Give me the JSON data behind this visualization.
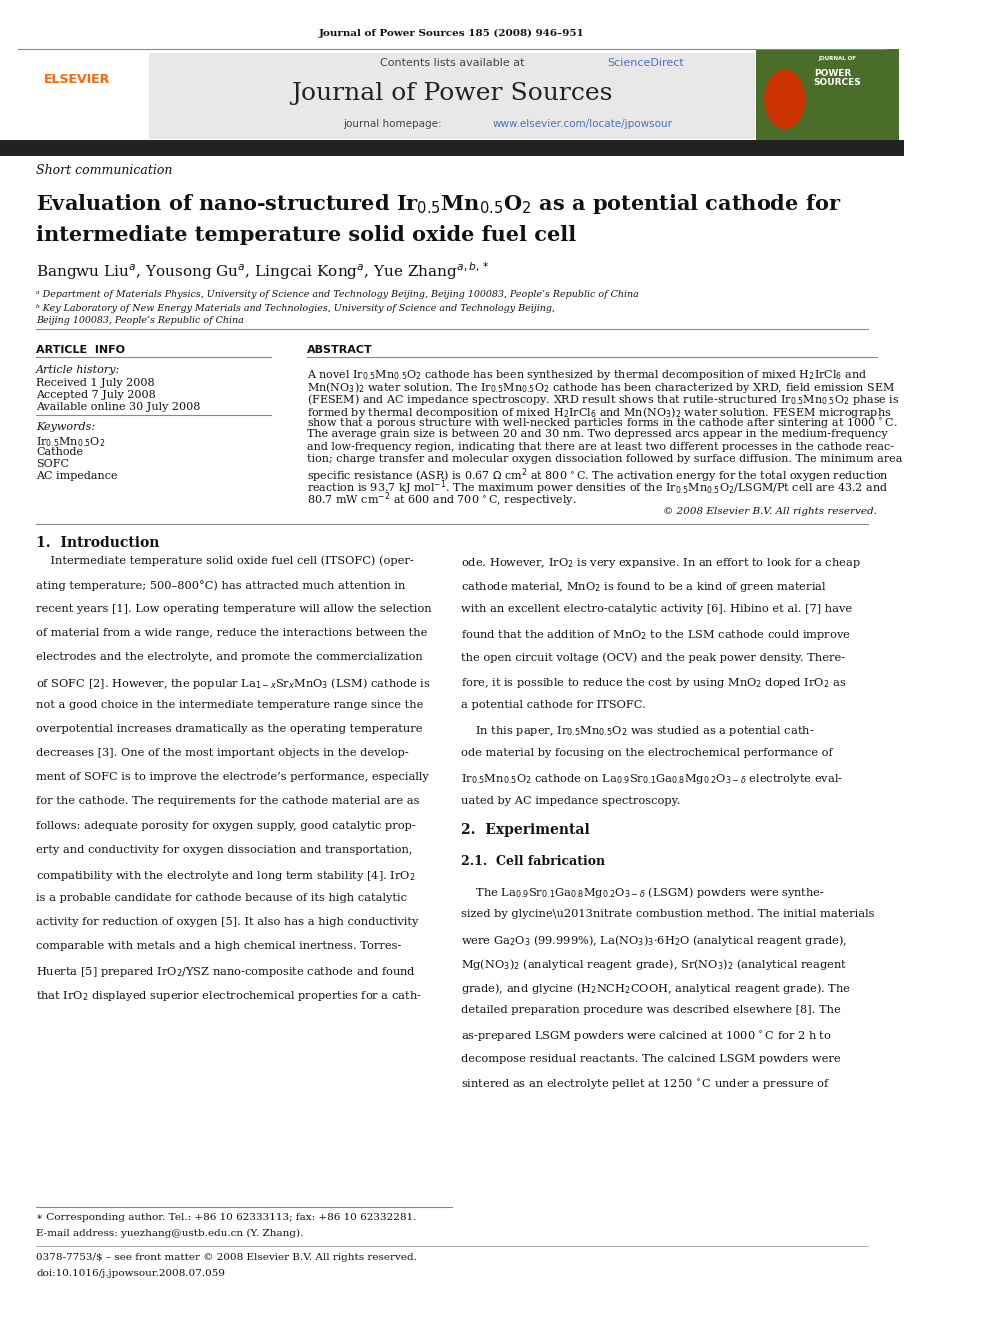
{
  "page_width": 9.92,
  "page_height": 13.23,
  "bg_color": "#ffffff",
  "top_journal_ref": "Journal of Power Sources 185 (2008) 946–951",
  "header_bg": "#e8e8e8",
  "header_contents": "Contents lists available at ScienceDirect",
  "header_sciencedirect_color": "#4472c4",
  "journal_title": "Journal of Power Sources",
  "journal_homepage": "journal homepage: www.elsevier.com/locate/jpowsour",
  "homepage_url_color": "#4472c4",
  "dark_bar_color": "#222222",
  "section_type": "Short communication",
  "affil_a": "ᵃ Department of Materials Physics, University of Science and Technology Beijing, Beijing 100083, People’s Republic of China",
  "affil_b": "ᵇ Key Laboratory of New Energy Materials and Technologies, University of Science and Technology Beijing,",
  "affil_b2": "Beijing 100083, People’s Republic of China",
  "article_info_label": "ARTICLE  INFO",
  "abstract_label": "ABSTRACT",
  "article_history_label": "Article history:",
  "received": "Received 1 July 2008",
  "accepted": "Accepted 7 July 2008",
  "available": "Available online 30 July 2008",
  "keywords_label": "Keywords:",
  "kw2": "Cathode",
  "kw3": "SOFC",
  "kw4": "AC impedance",
  "copyright": "© 2008 Elsevier B.V. All rights reserved.",
  "intro_heading": "1.  Introduction",
  "experimental_heading": "2.  Experimental",
  "exp_subheading": "2.1.  Cell fabrication",
  "footer_star": "∗ Corresponding author. Tel.: +86 10 62333113; fax: +86 10 62332281.",
  "footer_email": "E-mail address: yuezhang@ustb.edu.cn (Y. Zhang).",
  "footer_issn": "0378-7753/$ – see front matter © 2008 Elsevier B.V. All rights reserved.",
  "footer_doi": "doi:10.1016/j.jpowsour.2008.07.059",
  "elsevier_color": "#ff6600",
  "link_color": "#4472c4"
}
